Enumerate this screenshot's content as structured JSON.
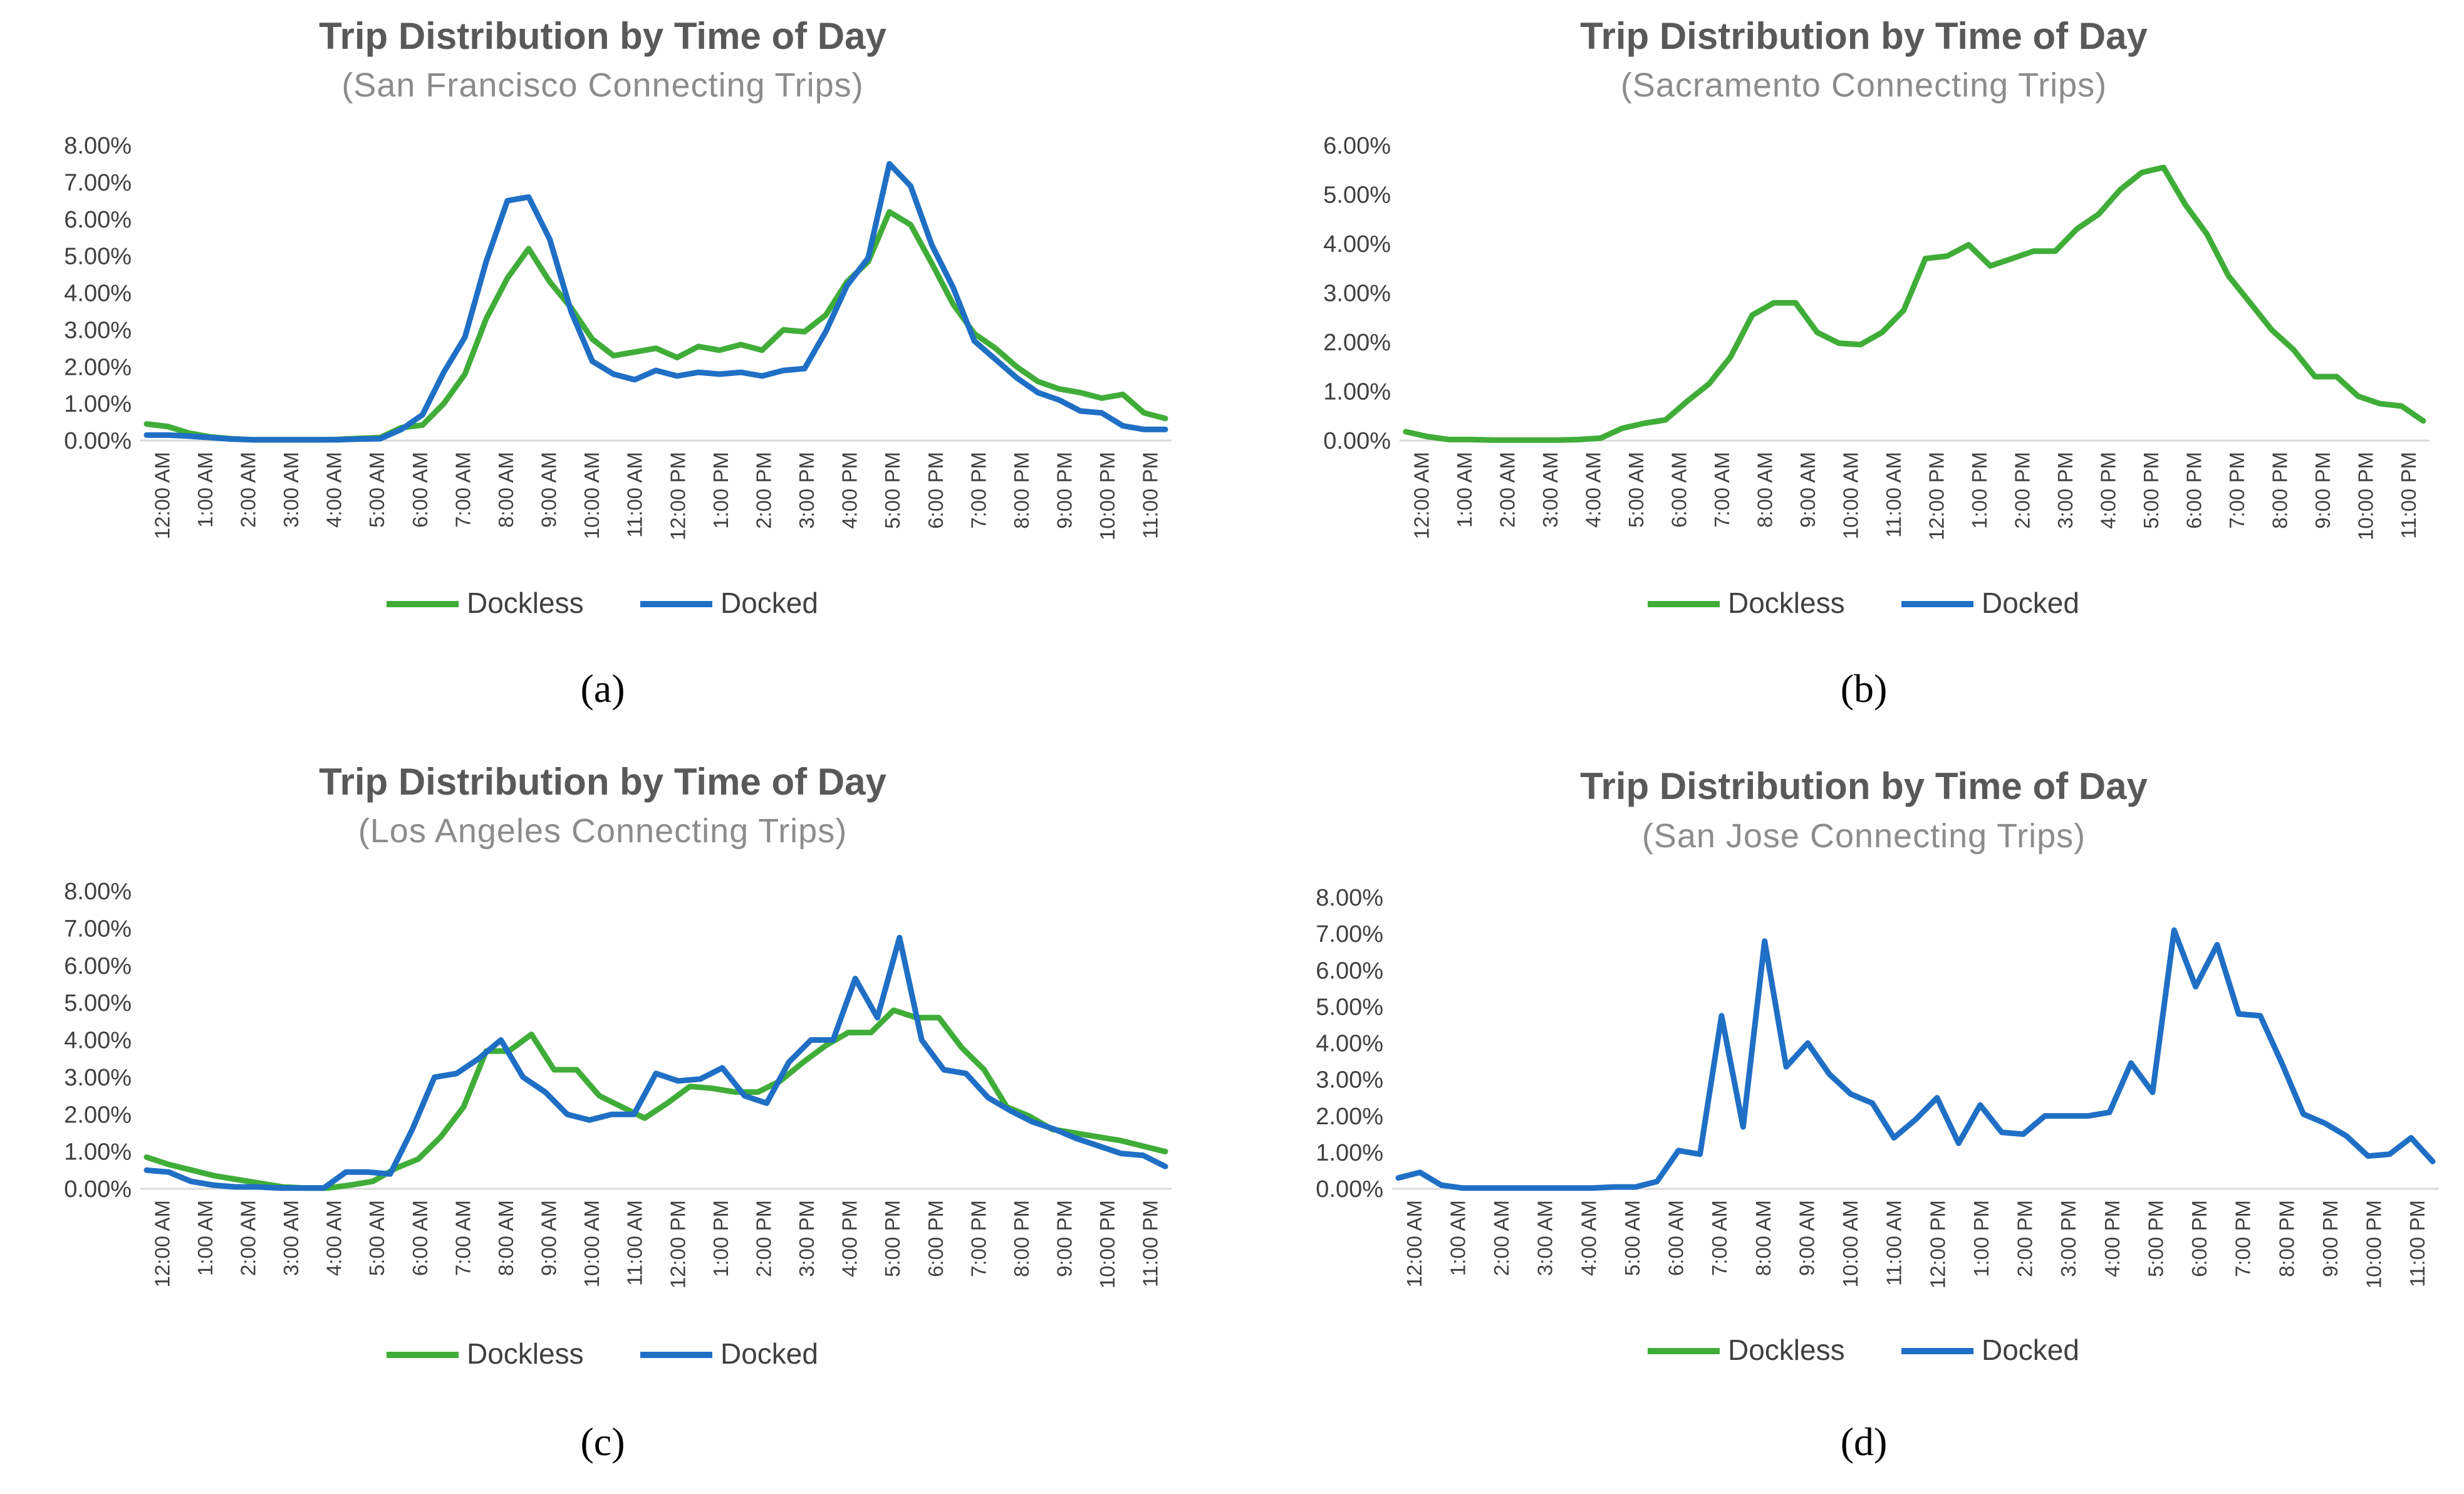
{
  "colors": {
    "Dockless": "#3fad38",
    "Docked": "#1f6fc5",
    "axis": "#d9d9d9"
  },
  "chart_data": [
    {
      "type": "line",
      "panel": "a",
      "title": "Trip Distribution by Time of Day",
      "subtitle": "(San Francisco Connecting Trips)",
      "ylim": [
        0,
        8
      ],
      "yticks": [
        "0.00%",
        "1.00%",
        "2.00%",
        "3.00%",
        "4.00%",
        "5.00%",
        "6.00%",
        "7.00%",
        "8.00%"
      ],
      "xticks": [
        "12:00 AM",
        "1:00 AM",
        "2:00 AM",
        "3:00 AM",
        "4:00 AM",
        "5:00 AM",
        "6:00 AM",
        "7:00 AM",
        "8:00 AM",
        "9:00 AM",
        "10:00 AM",
        "11:00 AM",
        "12:00 PM",
        "1:00 PM",
        "2:00 PM",
        "3:00 PM",
        "4:00 PM",
        "5:00 PM",
        "6:00 PM",
        "7:00 PM",
        "8:00 PM",
        "9:00 PM",
        "10:00 PM",
        "11:00 PM"
      ],
      "legend_position": "bottom",
      "series": [
        {
          "name": "Dockless",
          "values": [
            0.45,
            0.38,
            0.2,
            0.1,
            0.05,
            0.02,
            0.02,
            0.02,
            0.02,
            0.03,
            0.06,
            0.08,
            0.35,
            0.42,
            1.0,
            1.8,
            3.3,
            4.4,
            5.2,
            4.3,
            3.6,
            2.75,
            2.3,
            2.4,
            2.5,
            2.25,
            2.55,
            2.45,
            2.6,
            2.45,
            3.0,
            2.95,
            3.4,
            4.3,
            4.85,
            6.2,
            5.85,
            4.8,
            3.7,
            2.9,
            2.5,
            2.0,
            1.6,
            1.4,
            1.3,
            1.15,
            1.25,
            0.75,
            0.6
          ]
        },
        {
          "name": "Docked",
          "values": [
            0.15,
            0.15,
            0.12,
            0.08,
            0.04,
            0.02,
            0.02,
            0.02,
            0.02,
            0.02,
            0.04,
            0.05,
            0.3,
            0.7,
            1.85,
            2.8,
            4.85,
            6.5,
            6.6,
            5.45,
            3.5,
            2.15,
            1.8,
            1.65,
            1.9,
            1.75,
            1.85,
            1.8,
            1.85,
            1.75,
            1.9,
            1.95,
            2.95,
            4.2,
            4.95,
            7.5,
            6.9,
            5.3,
            4.15,
            2.7,
            2.2,
            1.7,
            1.3,
            1.1,
            0.8,
            0.75,
            0.4,
            0.3,
            0.3
          ]
        }
      ],
      "label": "(a)"
    },
    {
      "type": "line",
      "panel": "b",
      "title": "Trip Distribution by Time of Day",
      "subtitle": "(Sacramento Connecting Trips)",
      "ylim": [
        0,
        6
      ],
      "yticks": [
        "0.00%",
        "1.00%",
        "2.00%",
        "3.00%",
        "4.00%",
        "5.00%",
        "6.00%"
      ],
      "xticks": [
        "12:00 AM",
        "1:00 AM",
        "2:00 AM",
        "3:00 AM",
        "4:00 AM",
        "5:00 AM",
        "6:00 AM",
        "7:00 AM",
        "8:00 AM",
        "9:00 AM",
        "10:00 AM",
        "11:00 AM",
        "12:00 PM",
        "1:00 PM",
        "2:00 PM",
        "3:00 PM",
        "4:00 PM",
        "5:00 PM",
        "6:00 PM",
        "7:00 PM",
        "8:00 PM",
        "9:00 PM",
        "10:00 PM",
        "11:00 PM"
      ],
      "legend_position": "bottom",
      "series": [
        {
          "name": "Dockless",
          "values": [
            0.18,
            0.08,
            0.02,
            0.02,
            0.01,
            0.01,
            0.01,
            0.01,
            0.02,
            0.05,
            0.25,
            0.35,
            0.42,
            0.8,
            1.15,
            1.7,
            2.55,
            2.8,
            2.8,
            2.2,
            1.98,
            1.95,
            2.2,
            2.65,
            3.7,
            3.75,
            3.98,
            3.55,
            3.7,
            3.85,
            3.85,
            4.3,
            4.6,
            5.1,
            5.45,
            5.55,
            4.8,
            4.2,
            3.35,
            2.8,
            2.25,
            1.85,
            1.3,
            1.3,
            0.9,
            0.75,
            0.7,
            0.4
          ]
        },
        {
          "name": "Docked",
          "values": []
        }
      ],
      "label": "(b)"
    },
    {
      "type": "line",
      "panel": "c",
      "title": "Trip Distribution by Time of Day",
      "subtitle": "(Los Angeles Connecting Trips)",
      "ylim": [
        0,
        8
      ],
      "yticks": [
        "0.00%",
        "1.00%",
        "2.00%",
        "3.00%",
        "4.00%",
        "5.00%",
        "6.00%",
        "7.00%",
        "8.00%"
      ],
      "xticks": [
        "12:00 AM",
        "1:00 AM",
        "2:00 AM",
        "3:00 AM",
        "4:00 AM",
        "5:00 AM",
        "6:00 AM",
        "7:00 AM",
        "8:00 AM",
        "9:00 AM",
        "10:00 AM",
        "11:00 AM",
        "12:00 PM",
        "1:00 PM",
        "2:00 PM",
        "3:00 PM",
        "4:00 PM",
        "5:00 PM",
        "6:00 PM",
        "7:00 PM",
        "8:00 PM",
        "9:00 PM",
        "10:00 PM",
        "11:00 PM"
      ],
      "legend_position": "bottom",
      "series": [
        {
          "name": "Dockless",
          "values": [
            0.85,
            0.65,
            0.5,
            0.35,
            0.25,
            0.15,
            0.05,
            0.02,
            0.02,
            0.1,
            0.2,
            0.55,
            0.8,
            1.4,
            2.2,
            3.7,
            3.7,
            4.15,
            3.2,
            3.2,
            2.5,
            2.2,
            1.9,
            2.3,
            2.75,
            2.7,
            2.6,
            2.6,
            2.9,
            3.4,
            3.85,
            4.2,
            4.2,
            4.8,
            4.6,
            4.6,
            3.8,
            3.2,
            2.2,
            1.95,
            1.6,
            1.5,
            1.4,
            1.3,
            1.15,
            1.0
          ]
        },
        {
          "name": "Docked",
          "values": [
            0.5,
            0.45,
            0.2,
            0.1,
            0.05,
            0.05,
            0.02,
            0.02,
            0.02,
            0.45,
            0.45,
            0.4,
            1.6,
            3.0,
            3.1,
            3.5,
            4.0,
            3.0,
            2.6,
            2.0,
            1.85,
            2.0,
            2.0,
            3.1,
            2.9,
            2.95,
            3.25,
            2.5,
            2.3,
            3.4,
            4.0,
            4.0,
            5.65,
            4.6,
            6.75,
            4.0,
            3.2,
            3.1,
            2.45,
            2.1,
            1.8,
            1.6,
            1.35,
            1.15,
            0.95,
            0.9,
            0.6
          ]
        }
      ],
      "label": "(c)"
    },
    {
      "type": "line",
      "panel": "d",
      "title": "Trip Distribution by Time of Day",
      "subtitle": "(San Jose Connecting Trips)",
      "ylim": [
        0,
        8
      ],
      "yticks": [
        "0.00%",
        "1.00%",
        "2.00%",
        "3.00%",
        "4.00%",
        "5.00%",
        "6.00%",
        "7.00%",
        "8.00%"
      ],
      "xticks": [
        "12:00 AM",
        "1:00 AM",
        "2:00 AM",
        "3:00 AM",
        "4:00 AM",
        "5:00 AM",
        "6:00 AM",
        "7:00 AM",
        "8:00 AM",
        "9:00 AM",
        "10:00 AM",
        "11:00 AM",
        "12:00 PM",
        "1:00 PM",
        "2:00 PM",
        "3:00 PM",
        "4:00 PM",
        "5:00 PM",
        "6:00 PM",
        "7:00 PM",
        "8:00 PM",
        "9:00 PM",
        "10:00 PM",
        "11:00 PM"
      ],
      "legend_position": "bottom",
      "series": [
        {
          "name": "Dockless",
          "values": []
        },
        {
          "name": "Docked",
          "values": [
            0.3,
            0.45,
            0.1,
            0.02,
            0.02,
            0.02,
            0.02,
            0.02,
            0.02,
            0.02,
            0.05,
            0.05,
            0.2,
            1.05,
            0.95,
            4.75,
            1.7,
            6.8,
            3.35,
            4.0,
            3.15,
            2.6,
            2.35,
            1.4,
            1.9,
            2.5,
            1.25,
            2.3,
            1.55,
            1.5,
            2.0,
            2.0,
            2.0,
            2.1,
            3.45,
            2.65,
            7.1,
            5.55,
            6.7,
            4.8,
            4.75,
            3.45,
            2.05,
            1.8,
            1.45,
            0.9,
            0.95,
            1.4,
            0.75
          ]
        }
      ],
      "label": "(d)"
    }
  ]
}
